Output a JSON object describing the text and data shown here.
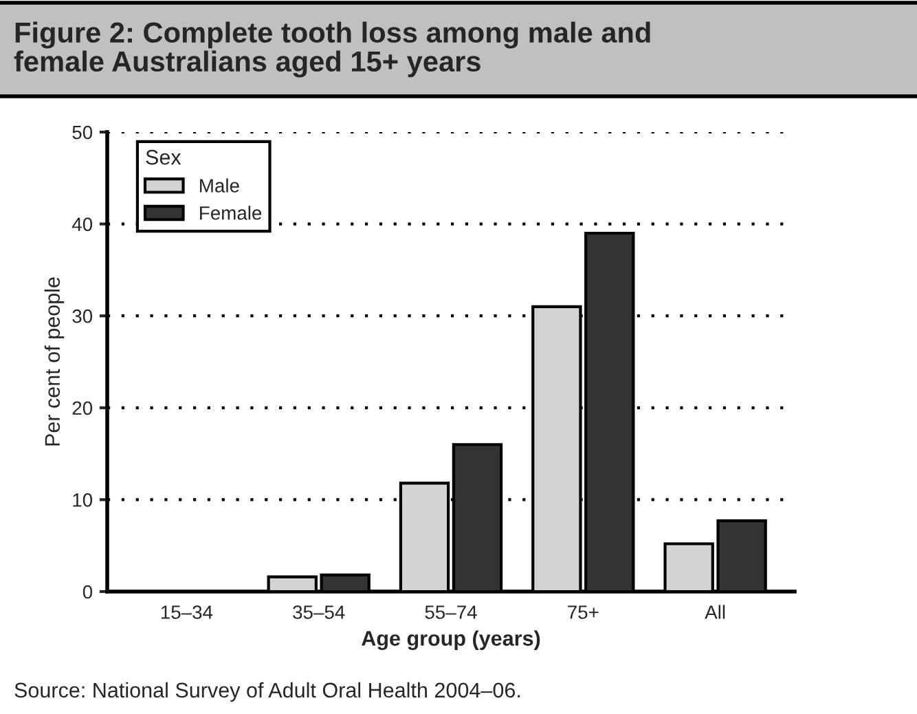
{
  "chart_data": {
    "type": "bar",
    "title": "Figure 2: Complete tooth loss among male and\nfemale Australians aged 15+ years",
    "xlabel": "Age group (years)",
    "ylabel": "Per cent of people",
    "legend_title": "Sex",
    "categories": [
      "15–34",
      "35–54",
      "55–74",
      "75+",
      "All"
    ],
    "series": [
      {
        "name": "Male",
        "color": "#d3d3d3",
        "values": [
          0,
          1.6,
          11.8,
          31,
          5.2
        ]
      },
      {
        "name": "Female",
        "color": "#333333",
        "values": [
          0,
          1.8,
          16,
          39,
          7.7
        ]
      }
    ],
    "ylim": [
      0,
      50
    ],
    "yticks": [
      0,
      10,
      20,
      30,
      40,
      50
    ],
    "grid": "y",
    "legend": "top left",
    "annotations": [
      "Source: National Survey of Adult Oral Health 2004–06."
    ]
  }
}
